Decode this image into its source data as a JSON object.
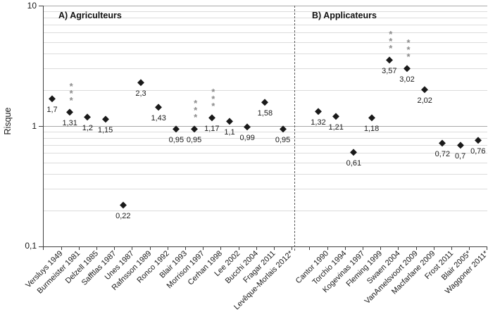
{
  "figure": {
    "colors": {
      "axis": "#404040",
      "grid_minor": "#dcdcdc",
      "grid_major": "#a8a8a8",
      "point": "#1a1a1a",
      "stars": "#8c8c8c",
      "divider": "#595959"
    }
  },
  "chart_data": {
    "type": "scatter",
    "title": "",
    "ylabel": "Risque",
    "xlabel": "",
    "y_scale": "log",
    "ylim": [
      0.1,
      10
    ],
    "y_ticks": [
      {
        "label": "10",
        "value": 10
      },
      {
        "label": "1",
        "value": 1
      },
      {
        "label": "0,1",
        "value": 0.1
      }
    ],
    "grid": "horizontal log gridlines (minor 2-9 per decade, major at 0.1 / 1 / 10)",
    "legend": "none",
    "marker": "black diamond",
    "significance_marker": "*** (grey, stacked vertically above point)",
    "panel_divider": "vertical dashed line between panels",
    "panels": [
      {
        "label": "A) Agriculteurs",
        "points": [
          {
            "study": "Versluys 1949",
            "value": 1.7,
            "label": "1,7",
            "stars": false
          },
          {
            "study": "Burmeister 1981",
            "value": 1.31,
            "label": "1,31",
            "stars": true
          },
          {
            "study": "Delzell 1985",
            "value": 1.2,
            "label": "1,2",
            "stars": false
          },
          {
            "study": "Safftlas 1987",
            "value": 1.15,
            "label": "1,15",
            "stars": false
          },
          {
            "study": "Unes 1987",
            "value": 0.22,
            "label": "0,22",
            "stars": false
          },
          {
            "study": "Rafnsson 1989",
            "value": 2.3,
            "label": "2,3",
            "stars": false
          },
          {
            "study": "Ronco 1992",
            "value": 1.43,
            "label": "1,43",
            "stars": false
          },
          {
            "study": "Blair 1993",
            "value": 0.95,
            "label": "0,95",
            "stars": false
          },
          {
            "study": "Morrison 1997",
            "value": 0.95,
            "label": "0,95",
            "stars": true
          },
          {
            "study": "Cerhan 1998",
            "value": 1.17,
            "label": "1,17",
            "stars": true
          },
          {
            "study": "Lee 2002",
            "value": 1.1,
            "label": "1,1",
            "stars": false
          },
          {
            "study": "Bucchi 2004",
            "value": 0.99,
            "label": "0,99",
            "stars": false
          },
          {
            "study": "Fragar 2011",
            "value": 1.58,
            "label": "1,58",
            "stars": false
          },
          {
            "study": "Levêque-Morlais 2012*",
            "value": 0.95,
            "label": "0,95",
            "stars": false
          }
        ]
      },
      {
        "label": "B) Applicateurs",
        "points": [
          {
            "study": "Cantor 1990",
            "value": 1.32,
            "label": "1,32",
            "stars": false
          },
          {
            "study": "Torchio 1994",
            "value": 1.21,
            "label": "1,21",
            "stars": false
          },
          {
            "study": "Kogevinas 1997",
            "value": 0.61,
            "label": "0,61",
            "stars": false
          },
          {
            "study": "Fleming 1999",
            "value": 1.18,
            "label": "1,18",
            "stars": false
          },
          {
            "study": "Swaen 2004",
            "value": 3.57,
            "label": "3,57",
            "stars": true
          },
          {
            "study": "VanAmelsvoort 2009",
            "value": 3.02,
            "label": "3,02",
            "stars": true
          },
          {
            "study": "Macfarlane 2009",
            "value": 2.02,
            "label": "2,02",
            "stars": false
          },
          {
            "study": "Frost 2011",
            "value": 0.72,
            "label": "0,72",
            "stars": false
          },
          {
            "study": "Blair 2005*",
            "value": 0.7,
            "label": "0,7",
            "stars": false
          },
          {
            "study": "Waggoner 2011*",
            "value": 0.76,
            "label": "0,76",
            "stars": false
          }
        ]
      }
    ]
  }
}
